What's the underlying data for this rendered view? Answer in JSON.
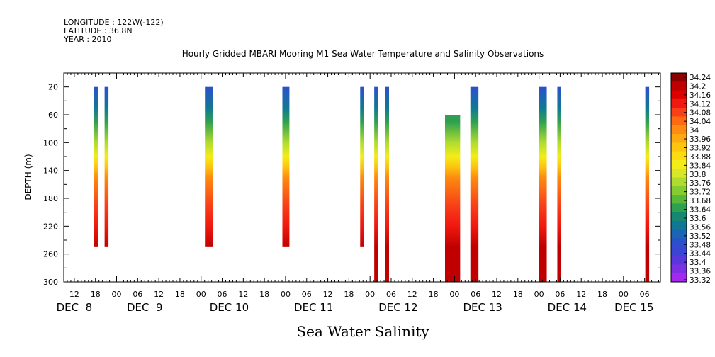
{
  "header": {
    "longitude": "LONGITUDE : 122W(-122)",
    "latitude": "LATITUDE : 36.8N",
    "year": "YEAR : 2010"
  },
  "chart_data": {
    "type": "heatmap",
    "title": "Hourly Gridded MBARI Mooring M1 Sea Water Temperature and Salinity Observations",
    "xlabel": "Sea Water Salinity",
    "ylabel": "DEPTH (m)",
    "ylim": [
      300,
      0
    ],
    "y_ticks": [
      20,
      60,
      100,
      140,
      180,
      220,
      260,
      300
    ],
    "x_hour_ticks": [
      {
        "hour": 12,
        "label": "12"
      },
      {
        "hour": 18,
        "label": "18"
      },
      {
        "hour": 24,
        "label": "00"
      },
      {
        "hour": 30,
        "label": "06"
      },
      {
        "hour": 36,
        "label": "12"
      },
      {
        "hour": 42,
        "label": "18"
      },
      {
        "hour": 48,
        "label": "00"
      },
      {
        "hour": 54,
        "label": "06"
      },
      {
        "hour": 60,
        "label": "12"
      },
      {
        "hour": 66,
        "label": "18"
      },
      {
        "hour": 72,
        "label": "00"
      },
      {
        "hour": 78,
        "label": "06"
      },
      {
        "hour": 84,
        "label": "12"
      },
      {
        "hour": 90,
        "label": "18"
      },
      {
        "hour": 96,
        "label": "00"
      },
      {
        "hour": 102,
        "label": "06"
      },
      {
        "hour": 108,
        "label": "12"
      },
      {
        "hour": 114,
        "label": "18"
      },
      {
        "hour": 120,
        "label": "00"
      },
      {
        "hour": 126,
        "label": "06"
      },
      {
        "hour": 132,
        "label": "12"
      },
      {
        "hour": 138,
        "label": "18"
      },
      {
        "hour": 144,
        "label": "00"
      },
      {
        "hour": 150,
        "label": "06"
      },
      {
        "hour": 156,
        "label": "12"
      },
      {
        "hour": 162,
        "label": "18"
      },
      {
        "hour": 168,
        "label": "00"
      },
      {
        "hour": 174,
        "label": "06"
      }
    ],
    "x_day_labels": [
      {
        "hour": 12,
        "label": "DEC  8"
      },
      {
        "hour": 32,
        "label": "DEC  9"
      },
      {
        "hour": 56,
        "label": "DEC 10"
      },
      {
        "hour": 80,
        "label": "DEC 11"
      },
      {
        "hour": 104,
        "label": "DEC 12"
      },
      {
        "hour": 128,
        "label": "DEC 13"
      },
      {
        "hour": 152,
        "label": "DEC 14"
      },
      {
        "hour": 171,
        "label": "DEC 15"
      }
    ],
    "xlim_hours": [
      9,
      178.5
    ],
    "x_time_note_origin": "DEC 7 00:00",
    "columns": [
      {
        "start_hour": 17.6,
        "end_hour": 18.7,
        "top_depth": 20,
        "bottom_depth": 250
      },
      {
        "start_hour": 20.6,
        "end_hour": 21.7,
        "top_depth": 20,
        "bottom_depth": 250
      },
      {
        "start_hour": 49.1,
        "end_hour": 51.3,
        "top_depth": 20,
        "bottom_depth": 250
      },
      {
        "start_hour": 71.1,
        "end_hour": 73.1,
        "top_depth": 20,
        "bottom_depth": 250
      },
      {
        "start_hour": 93.2,
        "end_hour": 94.3,
        "top_depth": 20,
        "bottom_depth": 250
      },
      {
        "start_hour": 97.2,
        "end_hour": 98.3,
        "top_depth": 20,
        "bottom_depth": 300
      },
      {
        "start_hour": 100.3,
        "end_hour": 101.4,
        "top_depth": 20,
        "bottom_depth": 300
      },
      {
        "start_hour": 117.3,
        "end_hour": 121.6,
        "top_depth": 60,
        "bottom_depth": 300
      },
      {
        "start_hour": 124.5,
        "end_hour": 126.8,
        "top_depth": 20,
        "bottom_depth": 300
      },
      {
        "start_hour": 144.0,
        "end_hour": 146.2,
        "top_depth": 20,
        "bottom_depth": 300
      },
      {
        "start_hour": 149.2,
        "end_hour": 150.3,
        "top_depth": 20,
        "bottom_depth": 300
      },
      {
        "start_hour": 174.2,
        "end_hour": 175.3,
        "top_depth": 20,
        "bottom_depth": 300
      }
    ],
    "salinity_profile": [
      {
        "depth": 20,
        "value": 33.48
      },
      {
        "depth": 50,
        "value": 33.56
      },
      {
        "depth": 70,
        "value": 33.64
      },
      {
        "depth": 100,
        "value": 33.76
      },
      {
        "depth": 120,
        "value": 33.84
      },
      {
        "depth": 135,
        "value": 33.92
      },
      {
        "depth": 150,
        "value": 34.0
      },
      {
        "depth": 190,
        "value": 34.06
      },
      {
        "depth": 220,
        "value": 34.12
      },
      {
        "depth": 250,
        "value": 34.18
      },
      {
        "depth": 300,
        "value": 34.2
      }
    ],
    "colorbar": {
      "labels": [
        "34.24",
        "34.2",
        "34.16",
        "34.12",
        "34.08",
        "34.04",
        "34",
        "33.96",
        "33.92",
        "33.88",
        "33.84",
        "33.8",
        "33.76",
        "33.72",
        "33.68",
        "33.64",
        "33.6",
        "33.56",
        "33.52",
        "33.48",
        "33.44",
        "33.4",
        "33.36",
        "33.32"
      ],
      "colors": [
        "#8b0000",
        "#c00000",
        "#dd0000",
        "#f01810",
        "#f84018",
        "#fc6a14",
        "#fd8c10",
        "#fdaa10",
        "#fdc410",
        "#fcdc10",
        "#f4ec18",
        "#d8e828",
        "#b0dc30",
        "#84cc30",
        "#58b838",
        "#2ea050",
        "#148870",
        "#107894",
        "#1c64b4",
        "#2c50cc",
        "#3c44d4",
        "#5838dc",
        "#7c30e4",
        "#a428f0"
      ]
    }
  }
}
